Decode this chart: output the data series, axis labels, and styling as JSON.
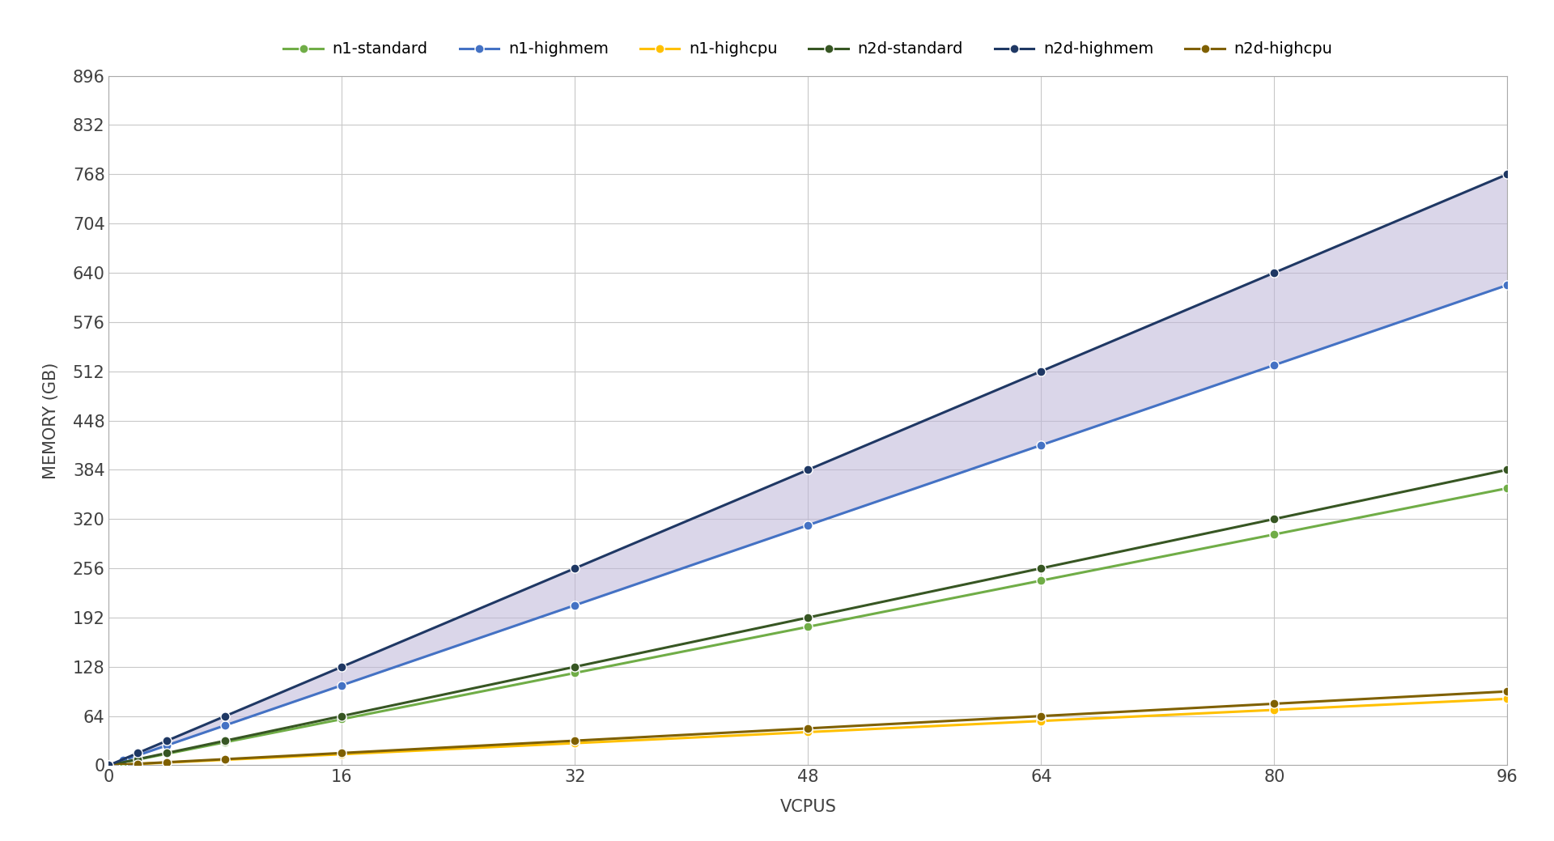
{
  "series": {
    "n1-standard": {
      "x": [
        0,
        1,
        2,
        4,
        8,
        16,
        32,
        48,
        64,
        80,
        96
      ],
      "y": [
        0,
        3.75,
        7.5,
        15,
        30,
        60,
        120,
        180,
        240,
        300,
        360
      ],
      "color": "#70AD47",
      "marker": "o",
      "linewidth": 2.2,
      "zorder": 4
    },
    "n1-highmem": {
      "x": [
        0,
        1,
        2,
        4,
        8,
        16,
        32,
        48,
        64,
        80,
        96
      ],
      "y": [
        0,
        6.5,
        13,
        26,
        52,
        104,
        208,
        312,
        416,
        520,
        624
      ],
      "color": "#4472C4",
      "marker": "o",
      "linewidth": 2.2,
      "zorder": 4
    },
    "n1-highcpu": {
      "x": [
        0,
        2,
        4,
        8,
        16,
        32,
        48,
        64,
        80,
        96
      ],
      "y": [
        0,
        1.8,
        3.6,
        7.2,
        14.4,
        28.8,
        43.2,
        57.6,
        72,
        86.4
      ],
      "color": "#FFC000",
      "marker": "o",
      "linewidth": 2.2,
      "zorder": 4
    },
    "n2d-standard": {
      "x": [
        0,
        2,
        4,
        8,
        16,
        32,
        48,
        64,
        80,
        96
      ],
      "y": [
        0,
        8,
        16,
        32,
        64,
        128,
        192,
        256,
        320,
        384
      ],
      "color": "#375623",
      "marker": "o",
      "linewidth": 2.2,
      "zorder": 4
    },
    "n2d-highmem": {
      "x": [
        0,
        2,
        4,
        8,
        16,
        32,
        48,
        64,
        80,
        96
      ],
      "y": [
        0,
        16,
        32,
        64,
        128,
        256,
        384,
        512,
        640,
        768
      ],
      "color": "#1F3864",
      "marker": "o",
      "linewidth": 2.2,
      "zorder": 5
    },
    "n2d-highcpu": {
      "x": [
        0,
        2,
        4,
        8,
        16,
        32,
        48,
        64,
        80,
        96
      ],
      "y": [
        0,
        2,
        4,
        8,
        16,
        32,
        48,
        64,
        80,
        96
      ],
      "color": "#7F6000",
      "marker": "o",
      "linewidth": 2.2,
      "zorder": 4
    }
  },
  "fill_between": {
    "series1": "n2d-highmem",
    "series2": "n1-highmem",
    "color": "#BDB5D8",
    "alpha": 0.55
  },
  "xlabel": "VCPUS",
  "ylabel": "MEMORY (GB)",
  "xlim": [
    0,
    96
  ],
  "ylim": [
    0,
    896
  ],
  "xticks": [
    0,
    16,
    32,
    48,
    64,
    80,
    96
  ],
  "yticks": [
    0,
    64,
    128,
    192,
    256,
    320,
    384,
    448,
    512,
    576,
    640,
    704,
    768,
    832,
    896
  ],
  "grid_color": "#C8C8C8",
  "background_color": "#FFFFFF",
  "plot_bg_color": "#FFFFFF",
  "legend_order": [
    "n1-standard",
    "n1-highmem",
    "n1-highcpu",
    "n2d-standard",
    "n2d-highmem",
    "n2d-highcpu"
  ],
  "legend_colors": {
    "n1-standard": "#70AD47",
    "n1-highmem": "#4472C4",
    "n1-highcpu": "#FFC000",
    "n2d-standard": "#375623",
    "n2d-highmem": "#1F3864",
    "n2d-highcpu": "#7F6000"
  },
  "marker_size": 8,
  "marker_face_colors": {
    "n1-standard": "#70AD47",
    "n1-highmem": "#4472C4",
    "n1-highcpu": "#FFC000",
    "n2d-standard": "#375623",
    "n2d-highmem": "#1F3864",
    "n2d-highcpu": "#7F6000"
  },
  "font_size": 15,
  "axis_label_fontsize": 15,
  "legend_fontsize": 14,
  "spine_color": "#AAAAAA",
  "tick_label_color": "#404040"
}
